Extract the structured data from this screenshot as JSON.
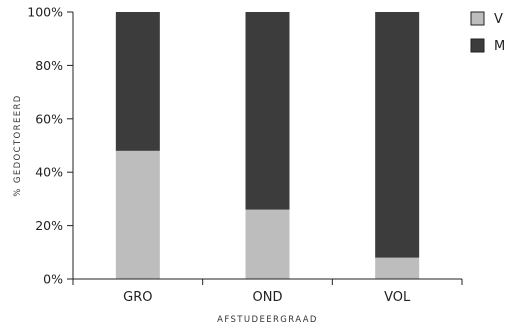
{
  "chart_data": {
    "type": "bar",
    "stacked": true,
    "categories": [
      "GRO",
      "OND",
      "VOL"
    ],
    "series": [
      {
        "name": "V",
        "values": [
          48,
          26,
          8
        ],
        "color": "#bdbdbd"
      },
      {
        "name": "M",
        "values": [
          52,
          74,
          92
        ],
        "color": "#3c3c3c"
      }
    ],
    "ylim": [
      0,
      100
    ],
    "yticks": [
      0,
      20,
      40,
      60,
      80,
      100
    ],
    "ytick_labels": [
      "0%",
      "20%",
      "40%",
      "60%",
      "80%",
      "100%"
    ],
    "xlabel": "AFSTUDEERGRAAD",
    "ylabel": "% GEDOCTOREERD",
    "legend_position": "right",
    "grid": false
  }
}
